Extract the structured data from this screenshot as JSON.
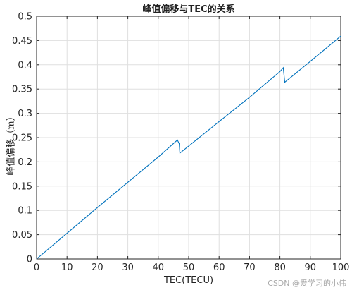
{
  "chart_data": {
    "type": "line",
    "title": "峰值偏移与TEC的关系",
    "xlabel": "TEC(TECU)",
    "ylabel": "峰值偏移（m）",
    "xlim": [
      0,
      100
    ],
    "ylim": [
      0,
      0.5
    ],
    "xticks": [
      "0",
      "10",
      "20",
      "30",
      "40",
      "50",
      "60",
      "70",
      "80",
      "90",
      "100"
    ],
    "yticks": [
      "0",
      "0.05",
      "0.1",
      "0.15",
      "0.2",
      "0.25",
      "0.3",
      "0.35",
      "0.4",
      "0.45",
      "0.5"
    ],
    "grid": true,
    "line_color": "#0072BD",
    "series": [
      {
        "x": [
          0,
          10,
          20,
          30,
          40,
          46.3,
          46.9,
          47.1,
          60,
          70,
          80,
          81.1,
          81.6,
          90,
          100
        ],
        "y": [
          0,
          0.053,
          0.106,
          0.158,
          0.21,
          0.245,
          0.237,
          0.218,
          0.283,
          0.333,
          0.386,
          0.394,
          0.364,
          0.407,
          0.459
        ]
      }
    ]
  },
  "watermark": "CSDN @爱学习的小伟"
}
